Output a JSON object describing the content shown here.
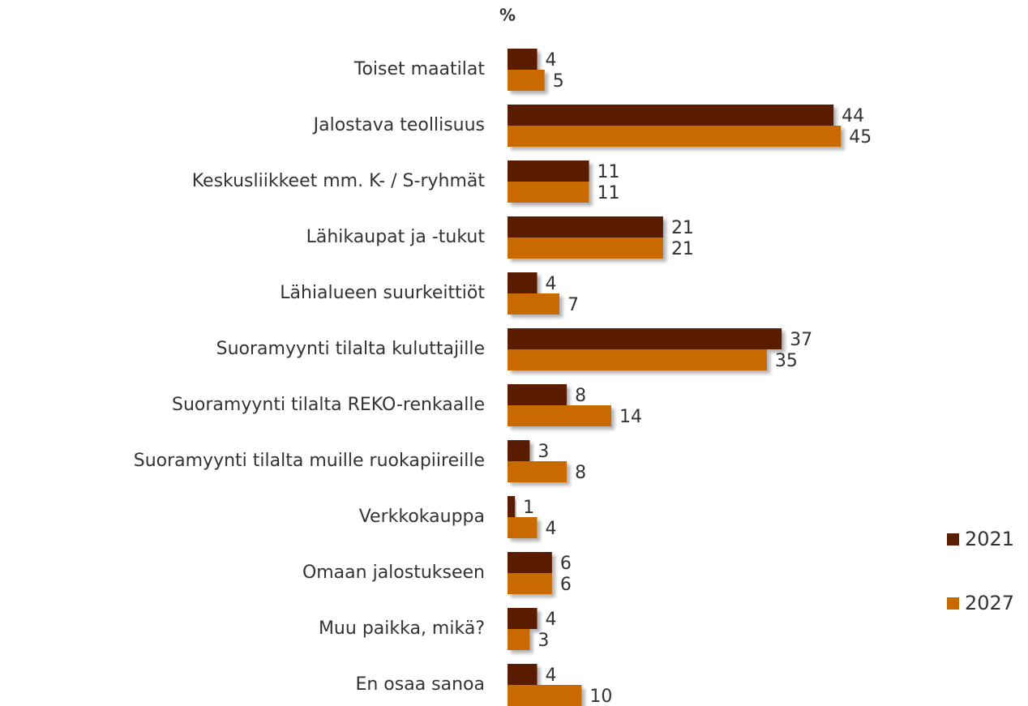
{
  "chart_data": {
    "type": "bar",
    "orientation": "horizontal",
    "unit_label": "%",
    "categories": [
      "Toiset maatilat",
      "Jalostava teollisuus",
      "Keskusliikkeet mm. K- / S-ryhmät",
      "Lähikaupat ja -tukut",
      "Lähialueen suurkeittiöt",
      "Suoramyynti tilalta kuluttajille",
      "Suoramyynti tilalta REKO-renkaalle",
      "Suoramyynti tilalta muille ruokapiireille",
      "Verkkokauppa",
      "Omaan jalostukseen",
      "Muu paikka, mikä?",
      "En osaa sanoa"
    ],
    "series": [
      {
        "name": "2021",
        "color": "#5a1e02",
        "values": [
          4,
          44,
          11,
          21,
          4,
          37,
          8,
          3,
          1,
          6,
          4,
          4
        ]
      },
      {
        "name": "2027",
        "color": "#c96a00",
        "values": [
          5,
          45,
          11,
          21,
          7,
          35,
          14,
          8,
          4,
          6,
          3,
          10
        ]
      }
    ],
    "legend": "right"
  }
}
